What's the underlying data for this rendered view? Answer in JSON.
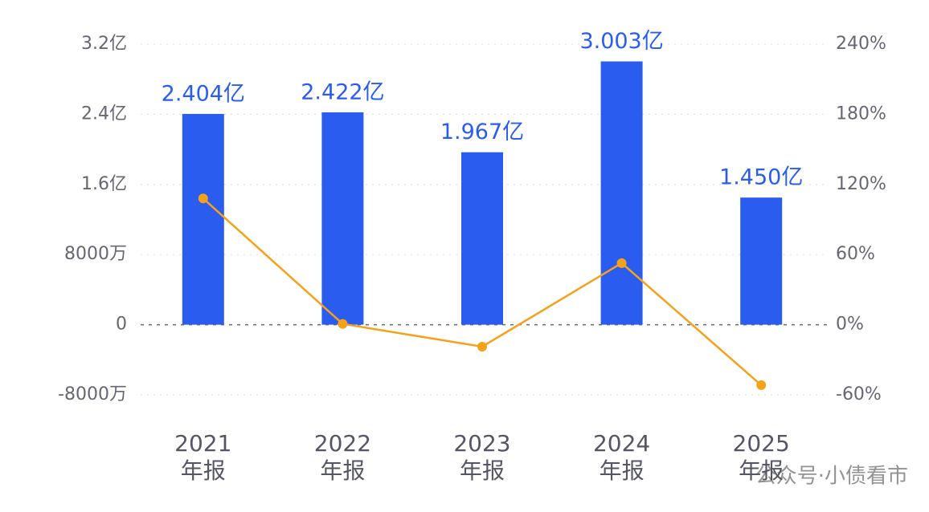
{
  "chart_data": {
    "type": "bar-line",
    "categories": [
      "2021\n年报",
      "2022\n年报",
      "2023\n年报",
      "2024\n年报",
      "2025\n年报"
    ],
    "series": [
      {
        "type": "bar",
        "color": "#2a5cf0",
        "values": [
          2.404,
          2.422,
          1.967,
          3.003,
          1.45
        ],
        "value_labels": [
          "2.404亿",
          "2.422亿",
          "1.967亿",
          "3.003亿",
          "1.450亿"
        ]
      },
      {
        "type": "line",
        "axis": "y2",
        "color": "#f5a21a",
        "values": [
          108,
          0.7,
          -18.8,
          52.7,
          -51.7
        ]
      }
    ],
    "ylim": [
      -0.8,
      3.2
    ],
    "yticks": [
      {
        "value": -0.8,
        "label": "-8000万"
      },
      0,
      {
        "value": 0.8,
        "label": "8000万"
      },
      {
        "value": 1.6,
        "label": "1.6亿"
      },
      {
        "value": 2.4,
        "label": "2.4亿"
      },
      {
        "value": 3.2,
        "label": "3.2亿"
      }
    ],
    "y2lim": [
      -60,
      240
    ],
    "y2ticks": [
      {
        "value": -60,
        "label": "-60%"
      },
      {
        "value": 0,
        "label": "0%"
      },
      {
        "value": 60,
        "label": "60%"
      },
      {
        "value": 120,
        "label": "120%"
      },
      {
        "value": 180,
        "label": "180%"
      },
      {
        "value": 240,
        "label": "240%"
      }
    ],
    "grid": true,
    "watermark": "公众号·小债看市"
  }
}
